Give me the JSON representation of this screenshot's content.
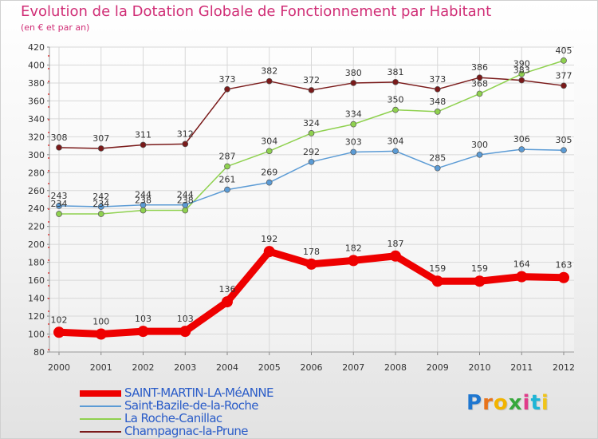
{
  "header": {
    "title": "Evolution de la Dotation Globale de Fonctionnement par Habitant",
    "subtitle": "(en € et par an)"
  },
  "chart_data": {
    "type": "line",
    "x": [
      "2000",
      "2001",
      "2002",
      "2003",
      "2004",
      "2005",
      "2006",
      "2007",
      "2008",
      "2009",
      "2010",
      "2011",
      "2012"
    ],
    "ylim": [
      80,
      420
    ],
    "yticks": [
      80,
      100,
      120,
      140,
      160,
      180,
      200,
      220,
      240,
      260,
      280,
      300,
      320,
      340,
      360,
      380,
      400,
      420
    ],
    "grid": true,
    "legend_position": "bottom-left",
    "series": [
      {
        "name": "SAINT-MARTIN-LA-MéANNE",
        "color": "#ee0000",
        "values": [
          102,
          100,
          103,
          103,
          136,
          192,
          178,
          182,
          187,
          159,
          159,
          164,
          163
        ]
      },
      {
        "name": "Saint-Bazile-de-la-Roche",
        "color": "#5b9bd5",
        "values": [
          243,
          242,
          244,
          244,
          261,
          269,
          292,
          303,
          304,
          285,
          300,
          306,
          305
        ]
      },
      {
        "name": "La Roche-Canillac",
        "color": "#8fd14f",
        "values": [
          234,
          234,
          238,
          238,
          287,
          304,
          324,
          334,
          350,
          348,
          368,
          390,
          405
        ]
      },
      {
        "name": "Champagnac-la-Prune",
        "color": "#7a1a1a",
        "values": [
          308,
          307,
          311,
          312,
          373,
          382,
          372,
          380,
          381,
          373,
          386,
          383,
          377
        ]
      }
    ]
  },
  "logo": {
    "text": "Proxiti",
    "colors": [
      "#1f77d0",
      "#e8731a",
      "#f2b400",
      "#37a83c",
      "#e03c8a",
      "#1fb5d6",
      "#f0c419"
    ]
  }
}
